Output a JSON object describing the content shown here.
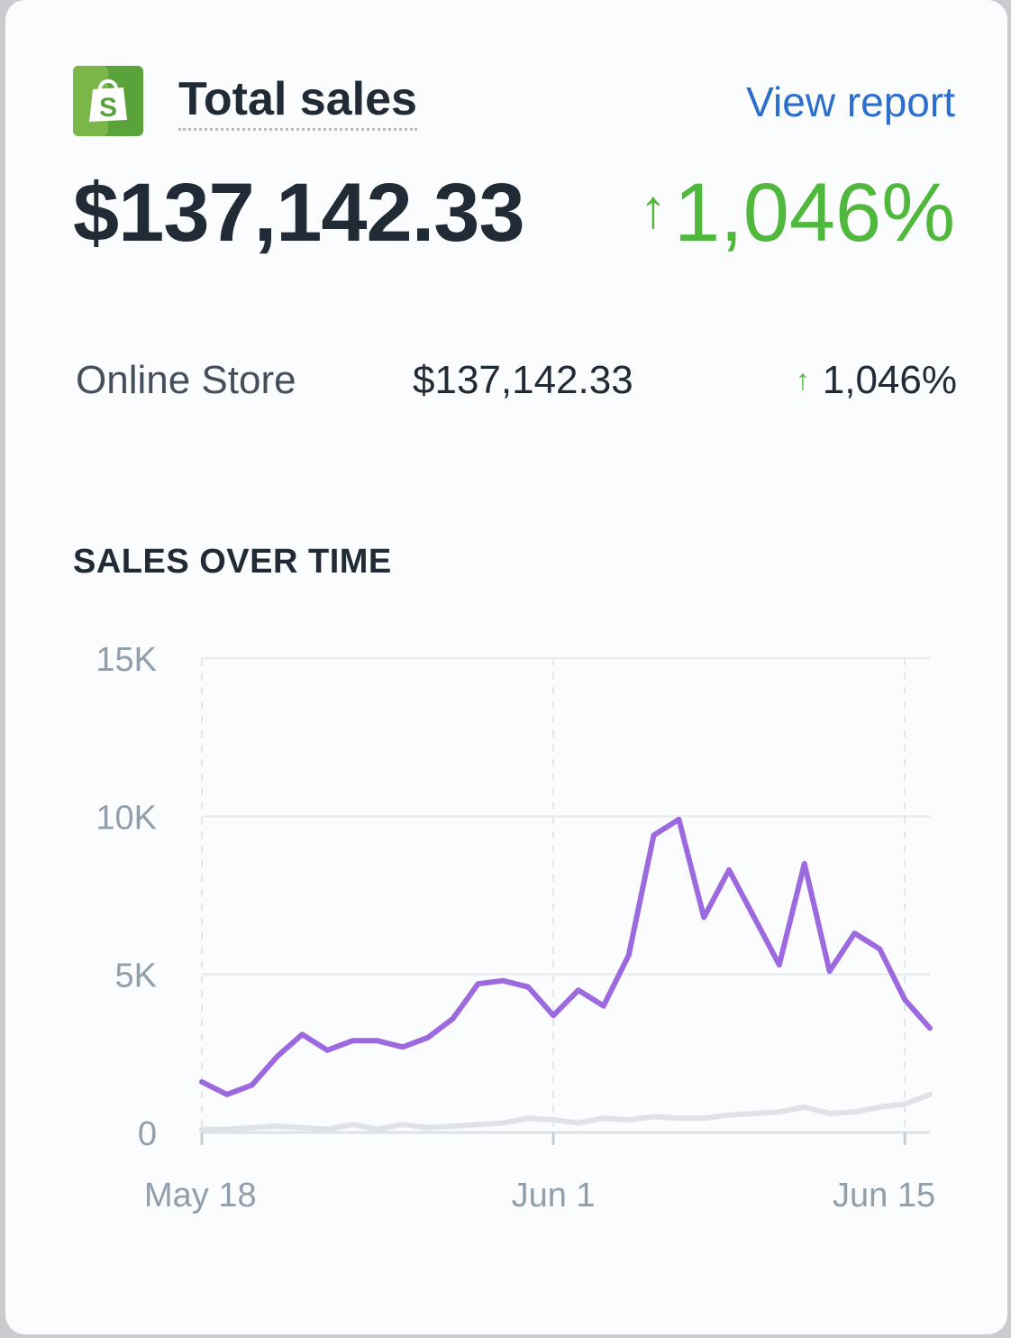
{
  "header": {
    "title": "Total sales",
    "link_label": "View report",
    "logo_icon": "shopify-bag-icon",
    "logo_color": "#5e8e3e"
  },
  "summary": {
    "total": "$137,142.33",
    "change_arrow": "↑",
    "change": "1,046%"
  },
  "breakdown": [
    {
      "name": "Online Store",
      "amount": "$137,142.33",
      "change_arrow": "↑",
      "change": "1,046%"
    }
  ],
  "colors": {
    "positive": "#50b83c",
    "current_series": "#9c6ade",
    "previous_series": "#dfe3e8",
    "link": "#2c6ecb"
  },
  "chart_data": {
    "type": "line",
    "title": "SALES OVER TIME",
    "xlabel": "",
    "ylabel": "",
    "ylim": [
      0,
      15000
    ],
    "y_ticks": [
      0,
      5000,
      10000,
      15000
    ],
    "y_tick_labels": [
      "0",
      "5K",
      "10K",
      "15K"
    ],
    "x_tick_labels": [
      "May 18",
      "Jun 1",
      "Jun 15"
    ],
    "x_tick_index": [
      0,
      14,
      28
    ],
    "x_count": 30,
    "grid": true,
    "legend": "none",
    "series": [
      {
        "values": [
          1600,
          1200,
          1500,
          2400,
          3100,
          2600,
          2900,
          2900,
          2700,
          3000,
          3600,
          4700,
          4800,
          4600,
          3700,
          4500,
          4000,
          5600,
          9400,
          9900,
          6800,
          8300,
          6800,
          5300,
          8500,
          5100,
          6300,
          5800,
          4200,
          3300
        ]
      },
      {
        "values": [
          100,
          100,
          150,
          200,
          150,
          100,
          250,
          100,
          250,
          150,
          200,
          250,
          300,
          450,
          400,
          300,
          450,
          400,
          500,
          450,
          450,
          550,
          600,
          650,
          800,
          600,
          650,
          800,
          900,
          1200
        ]
      }
    ]
  }
}
